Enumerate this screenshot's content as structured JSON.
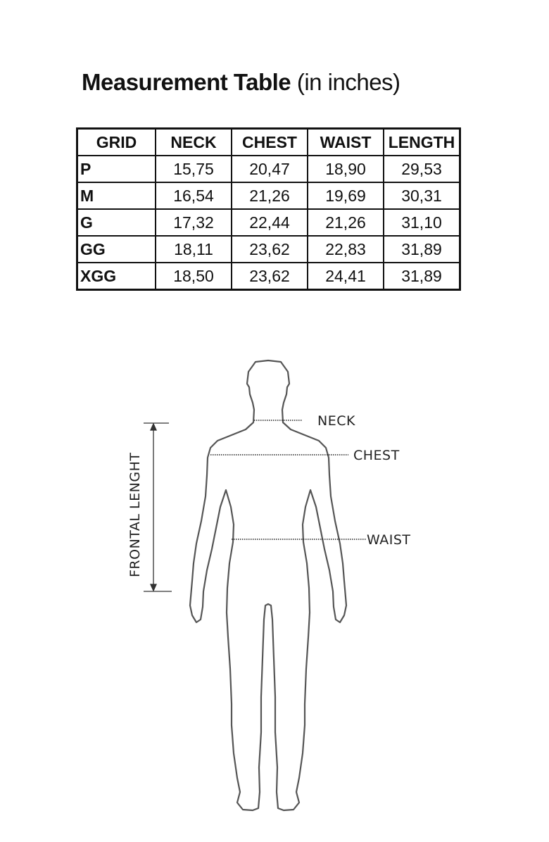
{
  "title": {
    "bold": "Measurement Table",
    "suffix": " (in inches)"
  },
  "table": {
    "headers": [
      "GRID",
      "NECK",
      "CHEST",
      "WAIST",
      "LENGTH"
    ],
    "rows": [
      [
        "P",
        "15,75",
        "20,47",
        "18,90",
        "29,53"
      ],
      [
        "M",
        "16,54",
        "21,26",
        "19,69",
        "30,31"
      ],
      [
        "G",
        "17,32",
        "22,44",
        "21,26",
        "31,10"
      ],
      [
        "GG",
        "18,11",
        "23,62",
        "22,83",
        "31,89"
      ],
      [
        "XGG",
        "18,50",
        "23,62",
        "24,41",
        "31,89"
      ]
    ]
  },
  "diagram": {
    "neck": "NECK",
    "chest": "CHEST",
    "waist": "WAIST",
    "length": "FRONTAL LENGHT"
  }
}
